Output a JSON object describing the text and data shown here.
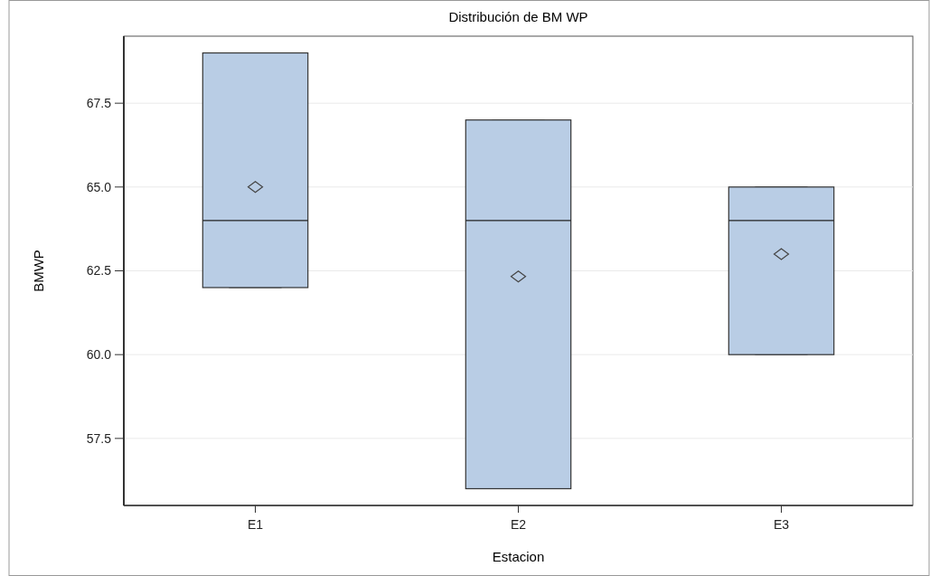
{
  "chart_data": {
    "type": "box",
    "title": "Distribución de BM WP",
    "xlabel": "Estacion",
    "ylabel": "BMWP",
    "categories": [
      "E1",
      "E2",
      "E3"
    ],
    "color": "#b9cde5",
    "marker": "diamond",
    "grid": "y",
    "ylim": [
      55.5,
      69.5
    ],
    "yticks": [
      57.5,
      {
        "value": 60,
        "label": "60.0"
      },
      62.5,
      {
        "value": 65,
        "label": "65.0"
      },
      67.5
    ],
    "boxes": [
      {
        "low": 62,
        "q1": 62,
        "median": 64,
        "q3": 69,
        "high": 69,
        "mean": 65
      },
      {
        "low": 56,
        "q1": 56,
        "median": 64,
        "q3": 67,
        "high": 67,
        "mean": 62.33
      },
      {
        "low": 60,
        "q1": 60,
        "median": 64,
        "q3": 65,
        "high": 65,
        "mean": 63
      }
    ]
  }
}
